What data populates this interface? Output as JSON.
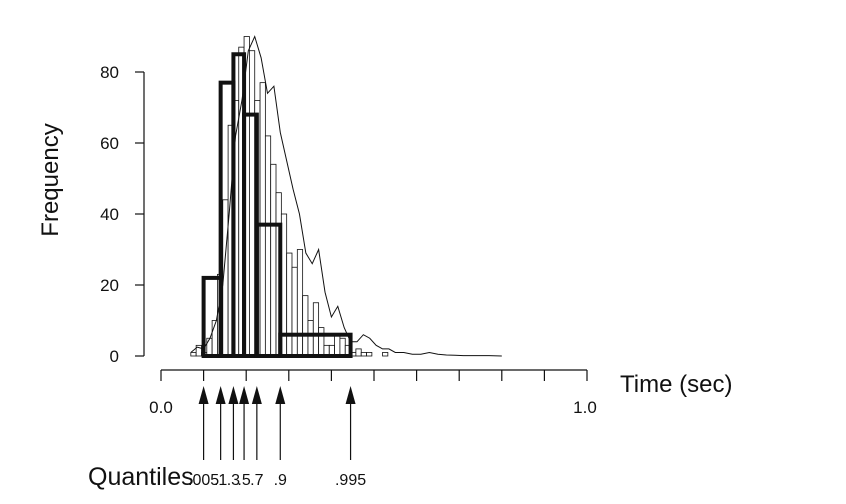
{
  "chart_data": {
    "type": "bar",
    "title": "",
    "ylabel": "Frequency",
    "xlabel": "Time (sec)",
    "xlim": [
      0.0,
      1.0
    ],
    "ylim": [
      0,
      80
    ],
    "y_ticks": [
      "0",
      "20",
      "40",
      "60",
      "80"
    ],
    "x_tick_labels": {
      "left": "0.0",
      "right": "1.0"
    },
    "x_minor_ticks": [
      0.0,
      0.1,
      0.2,
      0.3,
      0.4,
      0.5,
      0.6,
      0.7,
      0.8,
      0.9,
      1.0
    ],
    "histogram": {
      "bin_start": 0.07,
      "bin_width": 0.0125,
      "counts": [
        1,
        3,
        1,
        5,
        10,
        23,
        44,
        65,
        72,
        87,
        90,
        86,
        72,
        77,
        62,
        54,
        46,
        40,
        29,
        25,
        30,
        17,
        10,
        15,
        8,
        3,
        3,
        6,
        5,
        3,
        1,
        2,
        1,
        1,
        0,
        0,
        1,
        0
      ]
    },
    "smooth_curve": {
      "x": [
        0.07,
        0.085,
        0.1,
        0.115,
        0.13,
        0.145,
        0.16,
        0.175,
        0.19,
        0.205,
        0.22,
        0.235,
        0.25,
        0.265,
        0.28,
        0.295,
        0.31,
        0.325,
        0.34,
        0.355,
        0.37,
        0.385,
        0.4,
        0.415,
        0.43,
        0.445,
        0.46,
        0.475,
        0.49,
        0.505,
        0.52,
        0.535,
        0.55,
        0.57,
        0.59,
        0.61,
        0.63,
        0.65,
        0.67,
        0.69,
        0.71,
        0.73,
        0.75,
        0.77,
        0.8
      ],
      "y": [
        1,
        2.5,
        2,
        5,
        10,
        20,
        40,
        62,
        72,
        86,
        90,
        84,
        74,
        76,
        63,
        55,
        47,
        40,
        29,
        26,
        30,
        18,
        11,
        14,
        8,
        4,
        4,
        6,
        5,
        3,
        2,
        2,
        1,
        1,
        0.5,
        0.5,
        1,
        0.5,
        0.3,
        0.2,
        0.1,
        0.1,
        0.1,
        0.1,
        0
      ]
    },
    "quantile_bars": [
      {
        "from": 0.1,
        "to": 0.14,
        "height": 22
      },
      {
        "from": 0.14,
        "to": 0.17,
        "height": 77
      },
      {
        "from": 0.17,
        "to": 0.195,
        "height": 85
      },
      {
        "from": 0.195,
        "to": 0.225,
        "height": 68
      },
      {
        "from": 0.225,
        "to": 0.28,
        "height": 37
      },
      {
        "from": 0.28,
        "to": 0.445,
        "height": 6
      }
    ],
    "quantiles": {
      "title": "Quantiles",
      "items": [
        {
          "label": ".005",
          "value": 0.1
        },
        {
          "label": ".1",
          "value": 0.14
        },
        {
          "label": ".3",
          "value": 0.17
        },
        {
          "label": ".5",
          "value": 0.195
        },
        {
          "label": ".7",
          "value": 0.225
        },
        {
          "label": ".9",
          "value": 0.28
        },
        {
          "label": ".995",
          "value": 0.445
        }
      ]
    },
    "grid": false,
    "legend": "none"
  },
  "colors": {
    "ink": "#111111",
    "thin_bar_fill": "#ffffff",
    "background": "#ffffff"
  }
}
